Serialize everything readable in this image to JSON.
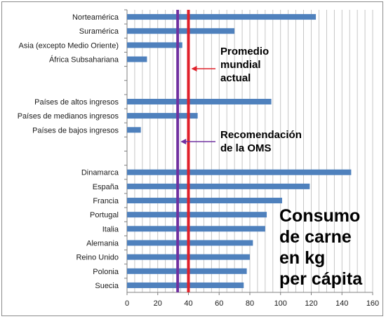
{
  "chart_data": {
    "type": "bar",
    "orientation": "horizontal",
    "categories": [
      "Norteamérica",
      "Suramérica",
      "Asia (excepto Medio Oriente)",
      "África Subsahariana",
      "",
      "",
      "Países de altos ingresos",
      "Países de medianos ingresos",
      "Países de bajos ingresos",
      "",
      "",
      "Dinamarca",
      "España",
      "Francia",
      "Portugal",
      "Italia",
      "Alemania",
      "Reino Unido",
      "Polonia",
      "Suecia"
    ],
    "values": [
      123,
      70,
      36,
      13,
      null,
      null,
      94,
      46,
      9,
      null,
      null,
      146,
      119,
      101,
      91,
      90,
      82,
      80,
      78,
      76
    ],
    "xlim": [
      0,
      160
    ],
    "xticks": [
      "0",
      "20",
      "40",
      "60",
      "80",
      "100",
      "120",
      "140",
      "160"
    ],
    "grid": true,
    "bar_color": "#4f81bd",
    "reference_lines": [
      {
        "value": 33,
        "color": "#7030a0",
        "label": "Recomendación\nde la OMS"
      },
      {
        "value": 40,
        "color": "#e0202a",
        "label": "Promedio\nmundial\nactual"
      }
    ],
    "annotation": "Consumo\nde carne\nen kg\nper cápita"
  }
}
